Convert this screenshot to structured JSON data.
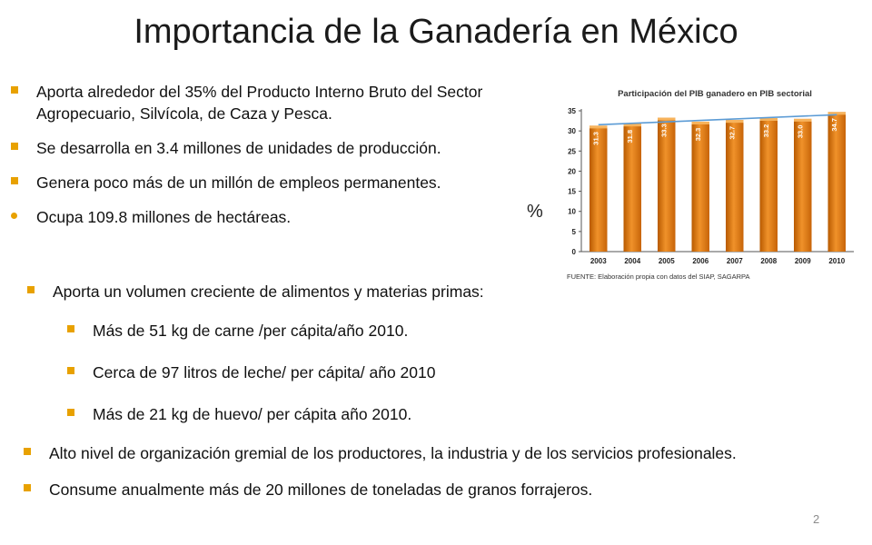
{
  "slide": {
    "title": "Importancia de la Ganadería en México",
    "page_number": "2",
    "percent_symbol": "%"
  },
  "bullets_top": [
    {
      "text": "Aporta alrededor del 35% del Producto Interno Bruto del Sector Agropecuario, Silvícola, de Caza y Pesca.",
      "marker": "square"
    },
    {
      "text": "Se desarrolla en 3.4 millones de unidades de producción.",
      "marker": "square"
    },
    {
      "text": "Genera poco más de un millón de empleos permanentes.",
      "marker": "square"
    },
    {
      "text": "Ocupa 109.8 millones de hectáreas.",
      "marker": "dot"
    }
  ],
  "bullet_mid": "Aporta un volumen creciente de alimentos y materias primas:",
  "sub_bullets": [
    "Más de 51 kg de carne /per cápita/año 2010.",
    "Cerca de 97 litros de leche/ per cápita/ año 2010",
    "Más de 21 kg de huevo/ per cápita año 2010."
  ],
  "bullets_bottom": [
    "Alto nivel de organización gremial de los productores, la industria  y de los servicios profesionales.",
    "Consume anualmente más de 20 millones de toneladas de granos forrajeros."
  ],
  "colors": {
    "bullet": "#e8a100",
    "bar": "#e07b10",
    "trend": "#5b9bd5"
  },
  "chart_data": {
    "type": "bar",
    "title": "Participación del PIB ganadero en PIB sectorial",
    "source": "FUENTE: Elaboración propia con datos del SIAP, SAGARPA",
    "categories": [
      "2003",
      "2004",
      "2005",
      "2006",
      "2007",
      "2008",
      "2009",
      "2010"
    ],
    "values": [
      31.3,
      31.8,
      33.3,
      32.3,
      32.7,
      33.2,
      33.0,
      34.7
    ],
    "value_labels": [
      "31.3",
      "31.8",
      "33.3",
      "32.3",
      "32.7",
      "33.2",
      "33.0",
      "34.7"
    ],
    "ylim": [
      0,
      35
    ],
    "yticks": [
      0,
      5,
      10,
      15,
      20,
      25,
      30,
      35
    ],
    "trendline": true,
    "grid": false
  }
}
